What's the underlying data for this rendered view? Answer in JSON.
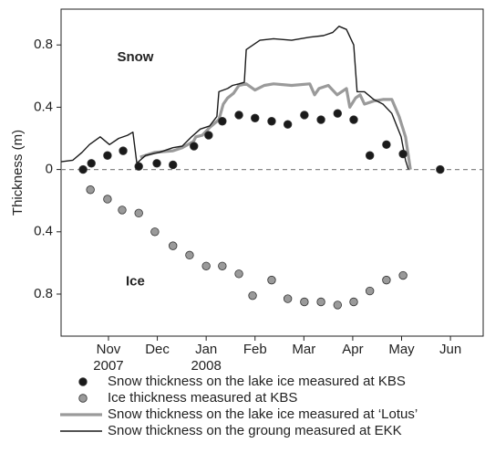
{
  "chart_data": {
    "type": "line",
    "ylabel": "Thickness (m)",
    "annotations": [
      {
        "text": "Snow",
        "x": 1.55,
        "y": 0.72
      },
      {
        "text": "Ice",
        "x": 1.55,
        "y": -0.72
      }
    ],
    "reference_line": {
      "y": 0,
      "style": "dashed",
      "color": "#888888"
    },
    "xlim": [
      0.03,
      8.67
    ],
    "ylim": [
      -1.07,
      1.03
    ],
    "xticks": [
      {
        "value": 1,
        "label": [
          "Nov",
          "2007"
        ]
      },
      {
        "value": 2,
        "label": [
          "Dec"
        ]
      },
      {
        "value": 3,
        "label": [
          "Jan",
          "2008"
        ]
      },
      {
        "value": 4,
        "label": [
          "Feb"
        ]
      },
      {
        "value": 5,
        "label": [
          "Mar"
        ]
      },
      {
        "value": 6,
        "label": [
          "Apr"
        ]
      },
      {
        "value": 7,
        "label": [
          "May"
        ]
      },
      {
        "value": 8,
        "label": [
          "Jun"
        ]
      }
    ],
    "yticks": [
      {
        "value": -0.8,
        "label": "0.8"
      },
      {
        "value": -0.4,
        "label": "0.4"
      },
      0,
      0.4,
      0.8
    ],
    "series": [
      {
        "name": "Snow thickness on the lake ice measured at KBS",
        "kind": "dot",
        "color": "#1a1a1a",
        "x": [
          0.48,
          0.65,
          0.98,
          1.3,
          1.62,
          1.99,
          2.32,
          2.75,
          3.05,
          3.33,
          3.67,
          4.0,
          4.34,
          4.67,
          5.01,
          5.35,
          5.69,
          6.02,
          6.35,
          6.69,
          7.03,
          7.79
        ],
        "values": [
          0,
          0.04,
          0.09,
          0.12,
          0.02,
          0.04,
          0.03,
          0.15,
          0.22,
          0.31,
          0.35,
          0.33,
          0.31,
          0.29,
          0.35,
          0.32,
          0.36,
          0.32,
          0.09,
          0.16,
          0.1,
          0
        ]
      },
      {
        "name": "Ice thickness measured at KBS",
        "kind": "dot",
        "color": "#9a9a9a",
        "x": [
          0.63,
          0.98,
          1.28,
          1.62,
          1.95,
          2.32,
          2.66,
          3.0,
          3.33,
          3.67,
          3.95,
          4.34,
          4.67,
          5.01,
          5.35,
          5.69,
          6.02,
          6.35,
          6.69,
          7.03
        ],
        "values": [
          -0.13,
          -0.19,
          -0.26,
          -0.28,
          -0.4,
          -0.49,
          -0.55,
          -0.62,
          -0.62,
          -0.67,
          -0.81,
          -0.71,
          -0.83,
          -0.85,
          -0.85,
          -0.87,
          -0.85,
          -0.78,
          -0.71,
          -0.68
        ]
      },
      {
        "name": "Snow thickness on the lake ice measured at ‘Lotus’",
        "kind": "thick-line",
        "color": "#9a9a9a",
        "x": [
          1.65,
          1.95,
          2.32,
          2.51,
          2.74,
          2.79,
          2.92,
          3.07,
          3.26,
          3.35,
          3.44,
          3.56,
          3.67,
          3.82,
          4.0,
          4.19,
          4.38,
          4.75,
          5.12,
          5.22,
          5.31,
          5.5,
          5.68,
          5.87,
          5.94,
          6.06,
          6.15,
          6.24,
          6.43,
          6.62,
          6.8,
          6.95,
          7.08,
          7.18
        ],
        "values": [
          0.08,
          0.11,
          0.12,
          0.14,
          0.18,
          0.21,
          0.22,
          0.27,
          0.32,
          0.42,
          0.46,
          0.49,
          0.54,
          0.55,
          0.51,
          0.54,
          0.55,
          0.54,
          0.55,
          0.48,
          0.52,
          0.54,
          0.48,
          0.52,
          0.4,
          0.46,
          0.48,
          0.42,
          0.44,
          0.45,
          0.45,
          0.34,
          0.21,
          0
        ]
      },
      {
        "name": "Snow thickness on the groung measured at EKK",
        "kind": "line",
        "color": "#1a1a1a",
        "x": [
          0.03,
          0.27,
          0.46,
          0.61,
          0.83,
          1.02,
          1.21,
          1.39,
          1.5,
          1.58,
          1.65,
          1.76,
          2.04,
          2.32,
          2.51,
          2.7,
          2.88,
          3.07,
          3.22,
          3.26,
          3.44,
          3.54,
          3.67,
          3.78,
          3.82,
          4.1,
          4.38,
          4.75,
          5.12,
          5.4,
          5.59,
          5.72,
          5.87,
          6.02,
          6.09,
          6.24,
          6.43,
          6.62,
          6.8,
          6.99,
          7.08,
          7.14
        ],
        "values": [
          0.05,
          0.06,
          0.11,
          0.16,
          0.21,
          0.16,
          0.2,
          0.22,
          0.24,
          0.04,
          0.06,
          0.09,
          0.11,
          0.14,
          0.15,
          0.21,
          0.26,
          0.28,
          0.34,
          0.5,
          0.52,
          0.54,
          0.55,
          0.56,
          0.77,
          0.83,
          0.84,
          0.83,
          0.85,
          0.86,
          0.88,
          0.92,
          0.9,
          0.8,
          0.5,
          0.5,
          0.45,
          0.42,
          0.36,
          0.21,
          0.06,
          0
        ]
      }
    ]
  }
}
